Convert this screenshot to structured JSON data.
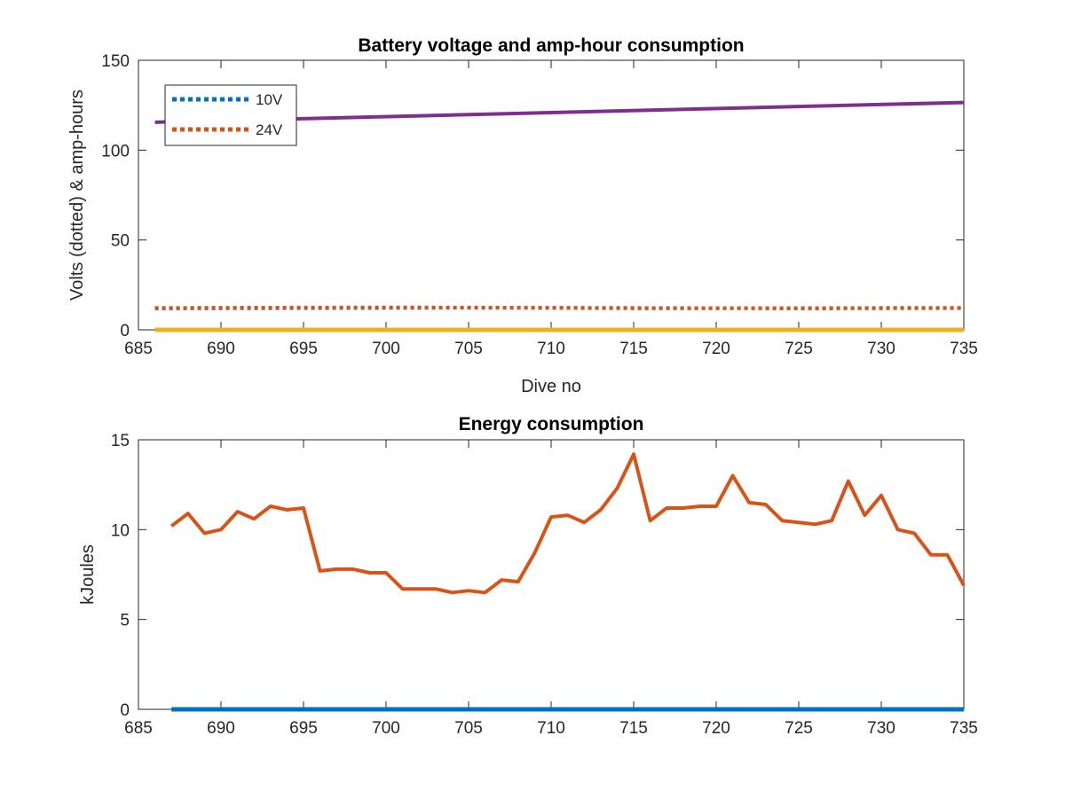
{
  "chart_data": [
    {
      "type": "line",
      "title": "Battery voltage and amp-hour consumption",
      "xlabel": "Dive no",
      "ylabel": "Volts (dotted) & amp-hours",
      "xlim": [
        685,
        735
      ],
      "ylim": [
        0,
        150
      ],
      "xticks": [
        685,
        690,
        695,
        700,
        705,
        710,
        715,
        720,
        725,
        730,
        735
      ],
      "yticks": [
        0,
        50,
        100,
        150
      ],
      "grid": false,
      "legend_placement": "top-left",
      "series": [
        {
          "name": "10V",
          "style": "dotted",
          "color": "#0072bd",
          "legend": true,
          "x": [
            686,
            690,
            695,
            700,
            705,
            710,
            715,
            720,
            725,
            730,
            735
          ],
          "y": [
            11.9,
            12.0,
            12.1,
            12.2,
            12.3,
            12.2,
            12.0,
            12.0,
            11.9,
            12.0,
            12.1
          ]
        },
        {
          "name": "24V",
          "style": "dotted",
          "color": "#d95319",
          "legend": true,
          "x": [
            686,
            690,
            695,
            700,
            705,
            710,
            715,
            720,
            725,
            730,
            735
          ],
          "y": [
            12.2,
            12.3,
            12.4,
            12.5,
            12.4,
            12.3,
            12.2,
            12.1,
            12.1,
            12.2,
            12.2
          ]
        },
        {
          "style": "solid",
          "color": "#7e2f8e",
          "legend": false,
          "x": [
            686,
            735
          ],
          "y": [
            115.5,
            126.5
          ]
        },
        {
          "style": "solid",
          "color": "#edb120",
          "legend": false,
          "x": [
            686,
            735
          ],
          "y": [
            0,
            0
          ]
        }
      ]
    },
    {
      "type": "line",
      "title": "Energy consumption",
      "xlabel": "",
      "ylabel": "kJoules",
      "xlim": [
        685,
        735
      ],
      "ylim": [
        0,
        15
      ],
      "xticks": [
        685,
        690,
        695,
        700,
        705,
        710,
        715,
        720,
        725,
        730,
        735
      ],
      "yticks": [
        0,
        5,
        10,
        15
      ],
      "grid": false,
      "series": [
        {
          "style": "solid",
          "color": "#d95319",
          "x": [
            687,
            688,
            689,
            690,
            691,
            692,
            693,
            694,
            695,
            696,
            697,
            698,
            699,
            700,
            701,
            702,
            703,
            704,
            705,
            706,
            707,
            708,
            709,
            710,
            711,
            712,
            713,
            714,
            715,
            716,
            717,
            718,
            719,
            720,
            721,
            722,
            723,
            724,
            725,
            726,
            727,
            728,
            729,
            730,
            731,
            732,
            733,
            734,
            735
          ],
          "y": [
            10.2,
            10.9,
            9.8,
            10.0,
            11.0,
            10.6,
            11.3,
            11.1,
            11.2,
            7.7,
            7.8,
            7.8,
            7.6,
            7.6,
            6.7,
            6.7,
            6.7,
            6.5,
            6.6,
            6.5,
            7.2,
            7.1,
            8.7,
            10.7,
            10.8,
            10.4,
            11.1,
            12.3,
            14.2,
            10.5,
            11.2,
            11.2,
            11.3,
            11.3,
            13.0,
            11.5,
            11.4,
            10.5,
            10.4,
            10.3,
            10.5,
            12.7,
            10.8,
            11.9,
            10.0,
            9.8,
            8.6,
            8.6,
            6.9
          ]
        },
        {
          "style": "solid",
          "color": "#0072bd",
          "x": [
            687,
            735
          ],
          "y": [
            0,
            0
          ]
        }
      ]
    }
  ]
}
